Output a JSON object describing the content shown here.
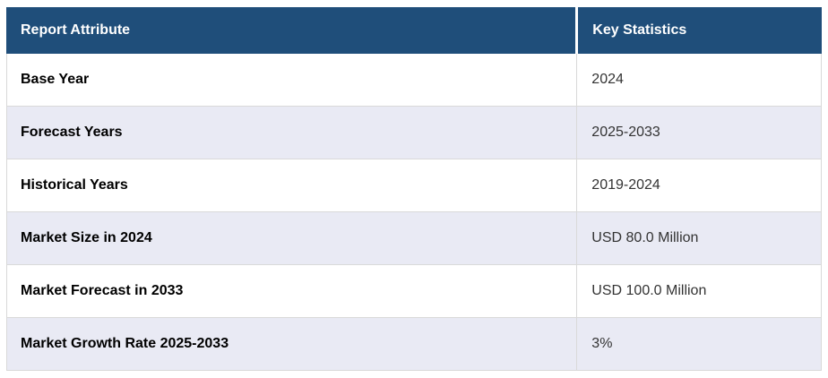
{
  "chart_data": {
    "type": "table",
    "columns": [
      "Report Attribute",
      "Key Statistics"
    ],
    "rows": [
      [
        "Base Year",
        "2024"
      ],
      [
        "Forecast Years",
        "2025-2033"
      ],
      [
        "Historical Years",
        "2019-2024"
      ],
      [
        "Market Size in 2024",
        "USD 80.0 Million"
      ],
      [
        "Market Forecast in 2033",
        "USD 100.0 Million"
      ],
      [
        "Market Growth Rate 2025-2033",
        "3%"
      ]
    ]
  },
  "colors": {
    "header_bg": "#1F4E7A",
    "header_text": "#FFFFFF",
    "row_bg": "#FFFFFF",
    "row_alt_bg": "#E9EAF4",
    "border": "#D9D9D9",
    "attribute_text": "#000000",
    "value_text": "#333333"
  }
}
